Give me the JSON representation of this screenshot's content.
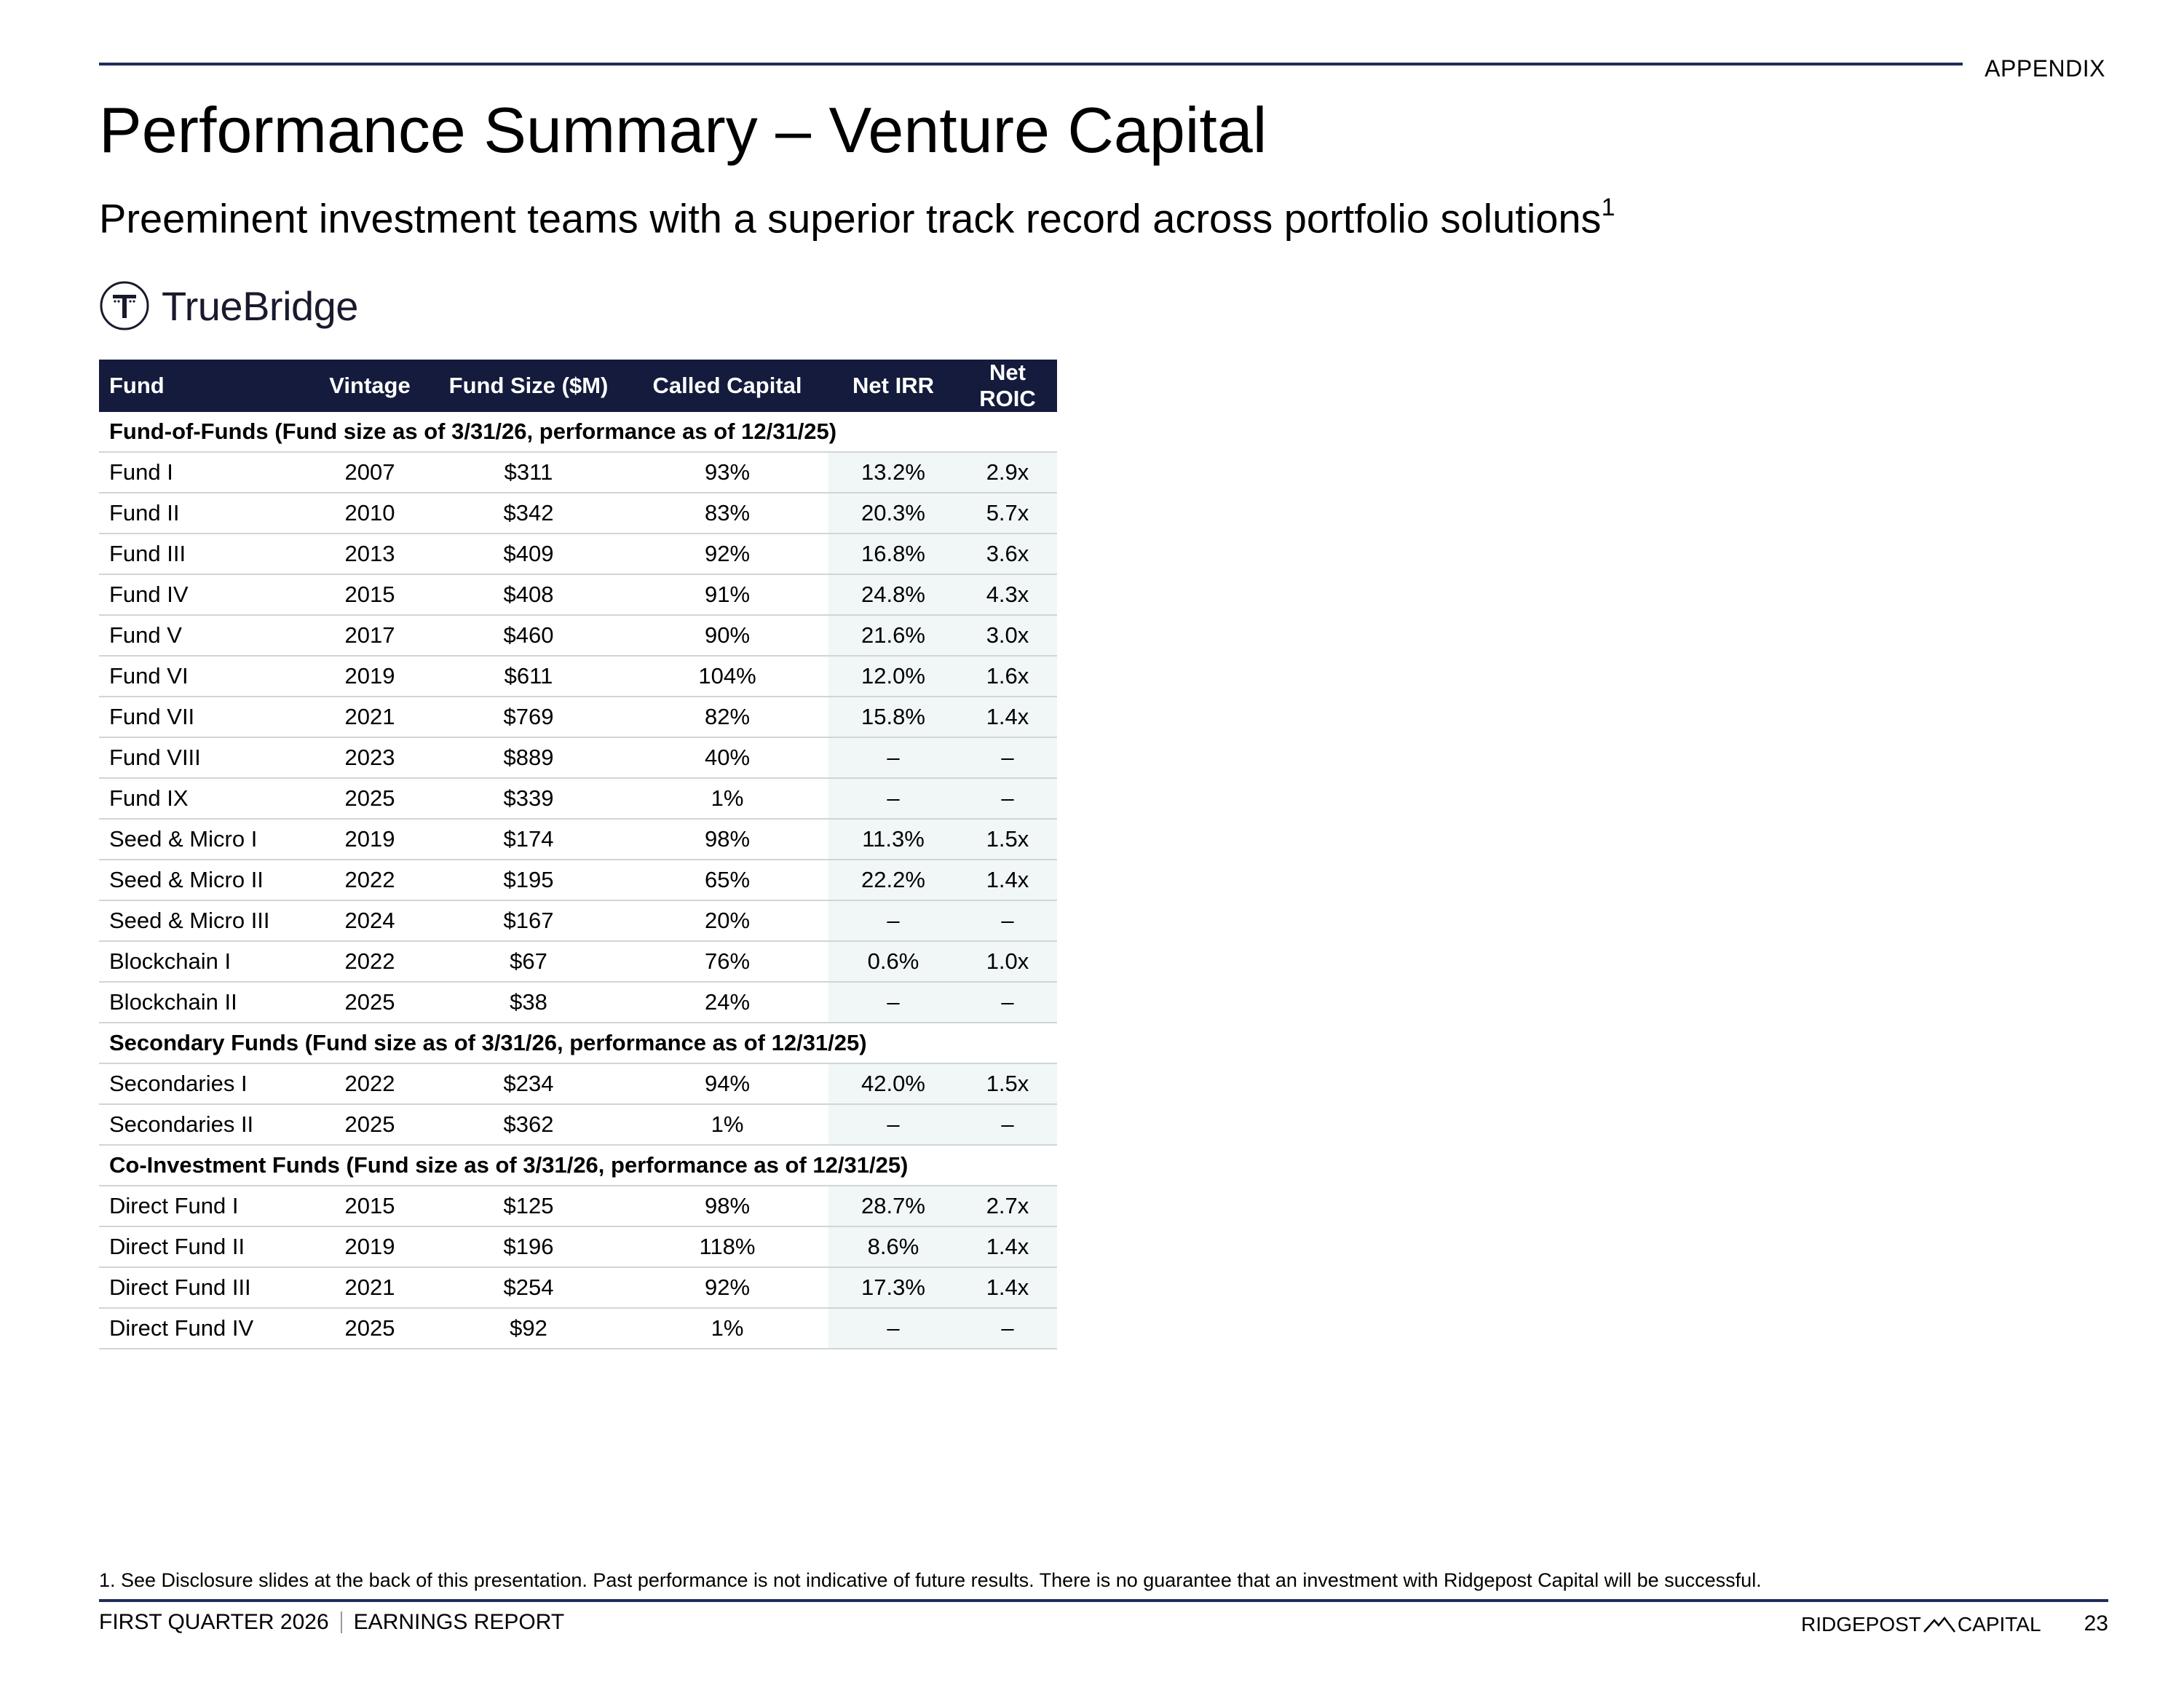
{
  "header": {
    "section_label": "APPENDIX",
    "title": "Performance Summary – Venture Capital",
    "subtitle": "Preeminent investment teams with a superior track record across portfolio solutions",
    "subtitle_footnote_ref": "1"
  },
  "logo": {
    "text": "TrueBridge",
    "icon": "truebridge-t-icon"
  },
  "table": {
    "columns": [
      "Fund",
      "Vintage",
      "Fund Size ($M)",
      "Called Capital",
      "Net IRR",
      "Net ROIC"
    ],
    "sections": [
      {
        "label": "Fund-of-Funds (Fund size as of 3/31/26, performance as of 12/31/25)",
        "rows": [
          [
            "Fund I",
            "2007",
            "$311",
            "93%",
            "13.2%",
            "2.9x"
          ],
          [
            "Fund II",
            "2010",
            "$342",
            "83%",
            "20.3%",
            "5.7x"
          ],
          [
            "Fund III",
            "2013",
            "$409",
            "92%",
            "16.8%",
            "3.6x"
          ],
          [
            "Fund IV",
            "2015",
            "$408",
            "91%",
            "24.8%",
            "4.3x"
          ],
          [
            "Fund V",
            "2017",
            "$460",
            "90%",
            "21.6%",
            "3.0x"
          ],
          [
            "Fund VI",
            "2019",
            "$611",
            "104%",
            "12.0%",
            "1.6x"
          ],
          [
            "Fund VII",
            "2021",
            "$769",
            "82%",
            "15.8%",
            "1.4x"
          ],
          [
            "Fund VIII",
            "2023",
            "$889",
            "40%",
            "–",
            "–"
          ],
          [
            "Fund IX",
            "2025",
            "$339",
            "1%",
            "–",
            "–"
          ],
          [
            "Seed & Micro I",
            "2019",
            "$174",
            "98%",
            "11.3%",
            "1.5x"
          ],
          [
            "Seed & Micro II",
            "2022",
            "$195",
            "65%",
            "22.2%",
            "1.4x"
          ],
          [
            "Seed & Micro III",
            "2024",
            "$167",
            "20%",
            "–",
            "–"
          ],
          [
            "Blockchain I",
            "2022",
            "$67",
            "76%",
            "0.6%",
            "1.0x"
          ],
          [
            "Blockchain II",
            "2025",
            "$38",
            "24%",
            "–",
            "–"
          ]
        ]
      },
      {
        "label": "Secondary Funds (Fund size as of 3/31/26, performance as of 12/31/25)",
        "rows": [
          [
            "Secondaries I",
            "2022",
            "$234",
            "94%",
            "42.0%",
            "1.5x"
          ],
          [
            "Secondaries II",
            "2025",
            "$362",
            "1%",
            "–",
            "–"
          ]
        ]
      },
      {
        "label": "Co-Investment Funds (Fund size as of 3/31/26, performance as of 12/31/25)",
        "rows": [
          [
            "Direct Fund I",
            "2015",
            "$125",
            "98%",
            "28.7%",
            "2.7x"
          ],
          [
            "Direct Fund II",
            "2019",
            "$196",
            "118%",
            "8.6%",
            "1.4x"
          ],
          [
            "Direct Fund III",
            "2021",
            "$254",
            "92%",
            "17.3%",
            "1.4x"
          ],
          [
            "Direct Fund IV",
            "2025",
            "$92",
            "1%",
            "–",
            "–"
          ]
        ]
      }
    ]
  },
  "footnote": "1.  See Disclosure slides at the back of this presentation. Past performance is not indicative of future results. There is no guarantee that an investment with Ridgepost Capital will be successful.",
  "footer": {
    "left_a": "FIRST QUARTER 2026",
    "left_b": "EARNINGS REPORT",
    "brand_left": "RIDGEPOST",
    "brand_icon": "ridgepost-mountain-icon",
    "brand_right": "CAPITAL",
    "page_number": "23"
  },
  "colors": {
    "navy_rule": "#1f2d5c",
    "header_fill": "#141b3c",
    "shade": "#f1f6f6"
  }
}
